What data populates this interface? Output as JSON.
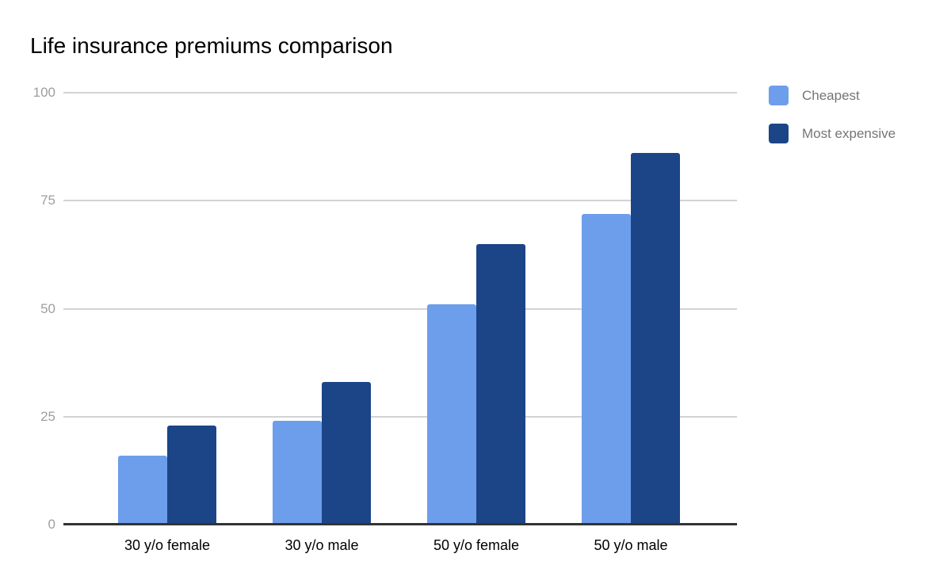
{
  "chart_data": {
    "type": "bar",
    "title": "Life insurance premiums comparison",
    "categories": [
      "30 y/o female",
      "30 y/o male",
      "50 y/o female",
      "50 y/o male"
    ],
    "series": [
      {
        "name": "Cheapest",
        "color": "#6d9eeb",
        "values": [
          16,
          24,
          51,
          72
        ]
      },
      {
        "name": "Most expensive",
        "color": "#1c4587",
        "values": [
          23,
          33,
          65,
          86
        ]
      }
    ],
    "xlabel": "",
    "ylabel": "",
    "ylim": [
      0,
      100
    ],
    "yticks": [
      0,
      25,
      50,
      75,
      100
    ],
    "grid": true,
    "legend_position": "right"
  },
  "colors": {
    "background": "#ffffff",
    "title_text": "#000000",
    "axis_tick_text": "#9e9e9e",
    "category_text": "#000000",
    "legend_text": "#757575",
    "gridline": "#d3d3d3",
    "axis_line": "#333333"
  }
}
